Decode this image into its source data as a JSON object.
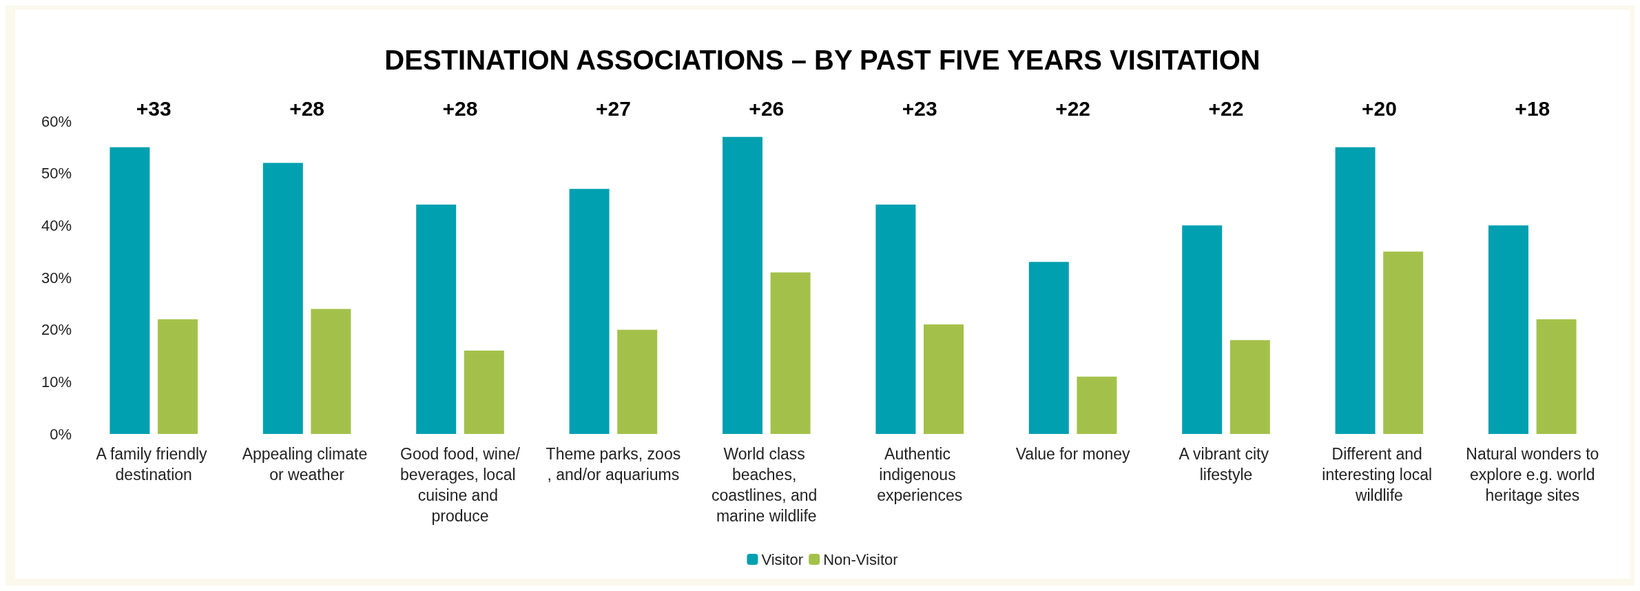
{
  "chart_data": {
    "type": "bar",
    "title": "DESTINATION ASSOCIATIONS – BY PAST FIVE YEARS VISITATION",
    "categories": [
      "A family friendly destination",
      "Appealing climate or weather",
      "Good food, wine/beverages, local cuisine and produce",
      "Theme parks, zoos, and/or aquariums",
      "World class beaches, coastlines, and marine wildlife",
      "Authentic indigenous experiences",
      "Value for money",
      "A vibrant city lifestyle",
      "Different and interesting local wildlife",
      "Natural wonders to explore e.g. world heritage sites"
    ],
    "series": [
      {
        "name": "Visitor",
        "color": "#00a0b0",
        "values": [
          55,
          52,
          44,
          47,
          57,
          44,
          33,
          40,
          55,
          40
        ]
      },
      {
        "name": "Non-Visitor",
        "color": "#a3c14a",
        "values": [
          22,
          24,
          16,
          20,
          31,
          21,
          11,
          18,
          35,
          22
        ]
      }
    ],
    "ylim": [
      0,
      60
    ],
    "yticks": [
      {
        "value": 0,
        "label": "0%"
      },
      {
        "value": 10,
        "label": "10%"
      },
      {
        "value": 20,
        "label": "20%"
      },
      {
        "value": 30,
        "label": "30%"
      },
      {
        "value": 40,
        "label": "40%"
      },
      {
        "value": 50,
        "label": "50%"
      },
      {
        "value": 60,
        "label": "60%"
      }
    ],
    "annotations": [
      "+33",
      "+28",
      "+28",
      "+27",
      "+26",
      "+23",
      "+22",
      "+22",
      "+20",
      "+18"
    ],
    "grid": false,
    "legend": "bottom"
  }
}
